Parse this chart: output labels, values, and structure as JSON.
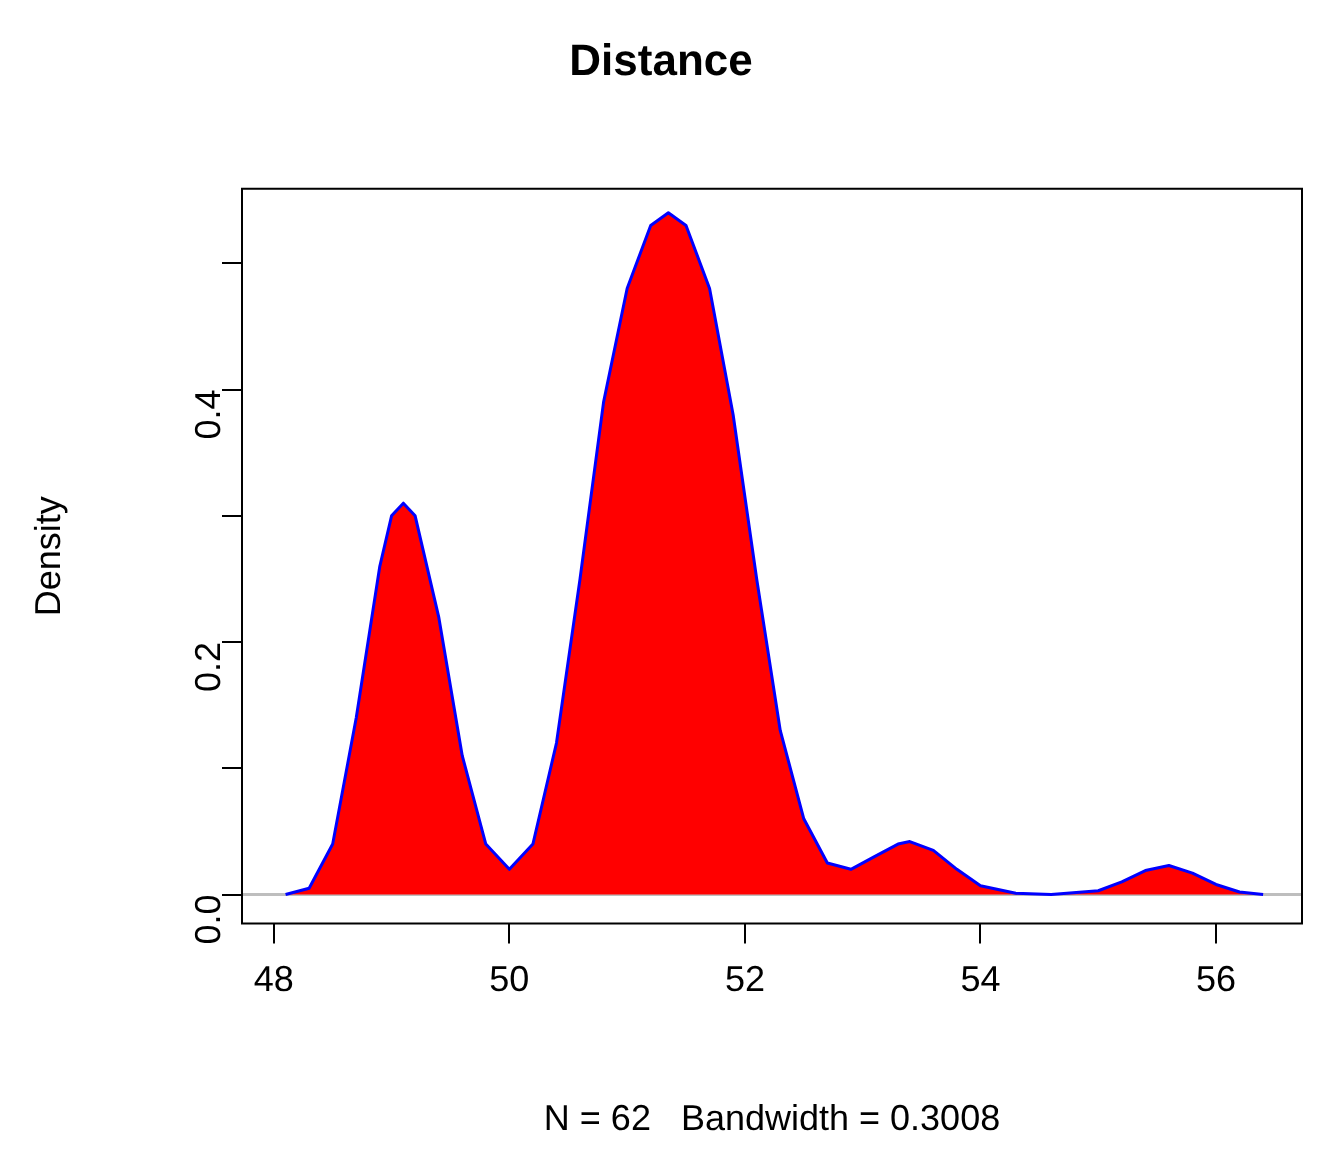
{
  "chart_data": {
    "type": "area",
    "title": "Distance",
    "xlabel": "N = 62   Bandwidth = 0.3008",
    "ylabel": "Density",
    "series": [
      {
        "color": "#ff0000",
        "x": [
          48.1,
          48.3,
          48.5,
          48.7,
          48.9,
          49.0,
          49.1,
          49.2,
          49.4,
          49.6,
          49.8,
          50.0,
          50.2,
          50.4,
          50.6,
          50.8,
          51.0,
          51.2,
          51.35,
          51.5,
          51.7,
          51.9,
          52.1,
          52.3,
          52.5,
          52.7,
          52.9,
          53.1,
          53.3,
          53.4,
          53.6,
          53.8,
          54.0,
          54.3,
          54.6,
          55.0,
          55.2,
          55.4,
          55.6,
          55.8,
          56.0,
          56.2,
          56.4
        ],
        "values": [
          0.0,
          0.005,
          0.04,
          0.14,
          0.26,
          0.3,
          0.31,
          0.3,
          0.22,
          0.11,
          0.04,
          0.02,
          0.04,
          0.12,
          0.25,
          0.39,
          0.48,
          0.53,
          0.54,
          0.53,
          0.48,
          0.38,
          0.25,
          0.13,
          0.06,
          0.025,
          0.02,
          0.03,
          0.04,
          0.042,
          0.035,
          0.02,
          0.007,
          0.001,
          0.0,
          0.003,
          0.01,
          0.019,
          0.023,
          0.017,
          0.008,
          0.002,
          0.0
        ]
      }
    ],
    "xlim": [
      47.73,
      56.73
    ],
    "xticks": [
      48,
      50,
      52,
      54,
      56
    ],
    "ylim": [
      -0.023,
      0.559
    ],
    "yticks": [
      {
        "value": 0,
        "label": "0.0"
      },
      {
        "value": 0.1,
        "label": null
      },
      {
        "value": 0.2,
        "label": "0.2"
      },
      {
        "value": 0.3,
        "label": null
      },
      {
        "value": 0.4,
        "label": "0.4"
      },
      {
        "value": 0.5,
        "label": null
      }
    ],
    "ref_lines": [
      {
        "axis": "y",
        "value": 0,
        "color": "#bebebe"
      }
    ],
    "grid": false,
    "legend": false
  }
}
